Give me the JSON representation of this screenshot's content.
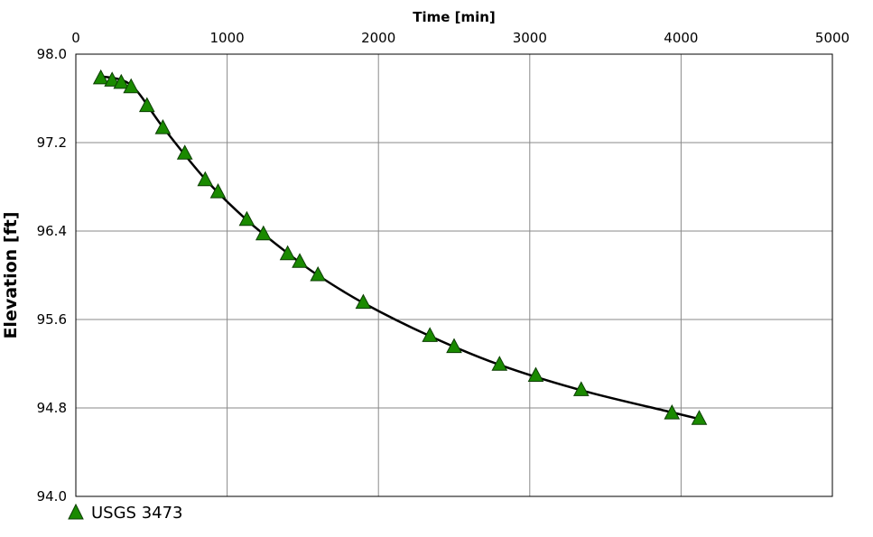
{
  "chart_data": {
    "type": "scatter",
    "xlabel": "Time [min]",
    "ylabel": "Elevation [ft]",
    "xlim": [
      0,
      5000
    ],
    "ylim": [
      94.0,
      98.0
    ],
    "x_ticks": [
      0,
      1000,
      2000,
      3000,
      4000,
      5000
    ],
    "y_ticks": [
      94.0,
      94.8,
      95.6,
      96.4,
      97.2,
      98.0
    ],
    "x_tick_labels": [
      "0",
      "1000",
      "2000",
      "3000",
      "4000",
      "5000"
    ],
    "y_tick_labels": [
      "94.0",
      "94.8",
      "95.6",
      "96.4",
      "97.2",
      "98.0"
    ],
    "grid": true,
    "legend_position": "bottom-left",
    "series": [
      {
        "name": "USGS 3473",
        "marker": "triangle",
        "color": "#1a8a00",
        "points": [
          {
            "x": 165,
            "y": 97.78
          },
          {
            "x": 240,
            "y": 97.76
          },
          {
            "x": 300,
            "y": 97.74
          },
          {
            "x": 365,
            "y": 97.7
          },
          {
            "x": 470,
            "y": 97.53
          },
          {
            "x": 575,
            "y": 97.33
          },
          {
            "x": 720,
            "y": 97.1
          },
          {
            "x": 855,
            "y": 96.86
          },
          {
            "x": 940,
            "y": 96.75
          },
          {
            "x": 1130,
            "y": 96.5
          },
          {
            "x": 1240,
            "y": 96.37
          },
          {
            "x": 1400,
            "y": 96.19
          },
          {
            "x": 1480,
            "y": 96.12
          },
          {
            "x": 1600,
            "y": 96.0
          },
          {
            "x": 1900,
            "y": 95.75
          },
          {
            "x": 2340,
            "y": 95.45
          },
          {
            "x": 2500,
            "y": 95.35
          },
          {
            "x": 2800,
            "y": 95.19
          },
          {
            "x": 3040,
            "y": 95.09
          },
          {
            "x": 3340,
            "y": 94.96
          },
          {
            "x": 3940,
            "y": 94.75
          },
          {
            "x": 4120,
            "y": 94.7
          }
        ]
      },
      {
        "type": "line",
        "color": "#000000",
        "points": [
          {
            "x": 165,
            "y": 97.8
          },
          {
            "x": 365,
            "y": 97.72
          },
          {
            "x": 575,
            "y": 97.34
          },
          {
            "x": 855,
            "y": 96.87
          },
          {
            "x": 1130,
            "y": 96.5
          },
          {
            "x": 1400,
            "y": 96.2
          },
          {
            "x": 1600,
            "y": 96.0
          },
          {
            "x": 1900,
            "y": 95.75
          },
          {
            "x": 2340,
            "y": 95.45
          },
          {
            "x": 2800,
            "y": 95.19
          },
          {
            "x": 3340,
            "y": 94.96
          },
          {
            "x": 3940,
            "y": 94.76
          },
          {
            "x": 4120,
            "y": 94.7
          }
        ]
      }
    ]
  }
}
